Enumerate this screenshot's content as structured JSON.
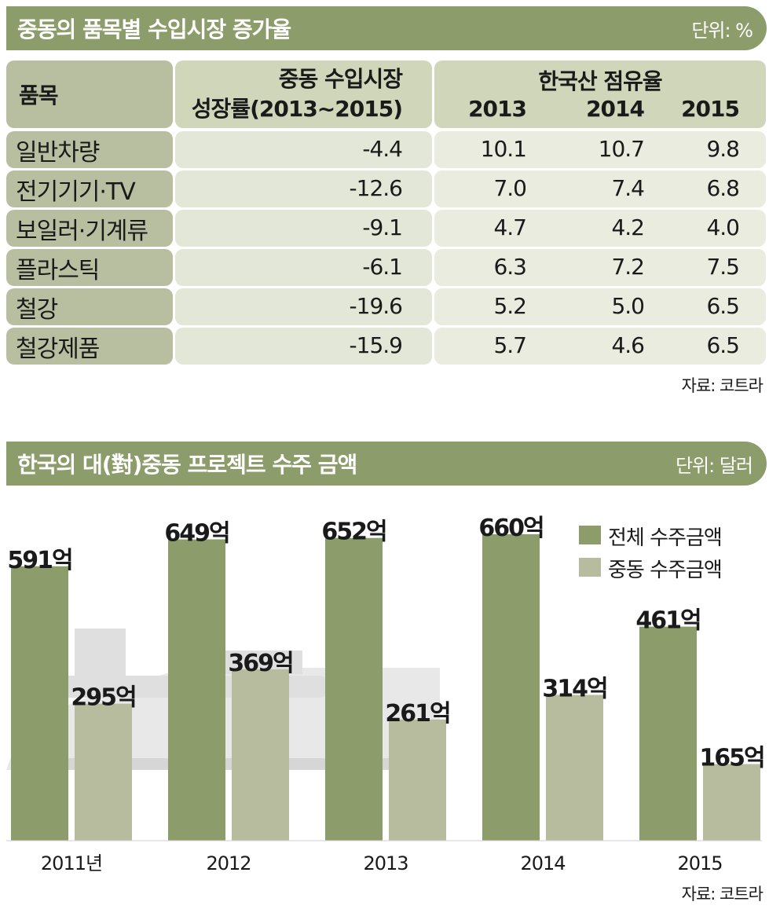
{
  "table_section": {
    "title": "중동의 품목별 수입시장 증가율",
    "unit": "단위: %",
    "headers": {
      "item": "품목",
      "growth_line1": "중동 수입시장",
      "growth_line2": "성장률(2013~2015)",
      "share_title": "한국산 점유율",
      "years": [
        "2013",
        "2014",
        "2015"
      ]
    },
    "rows": [
      {
        "item": "일반차량",
        "growth": "-4.4",
        "shares": [
          "10.1",
          "10.7",
          "9.8"
        ]
      },
      {
        "item": "전기기기·TV",
        "growth": "-12.6",
        "shares": [
          "7.0",
          "7.4",
          "6.8"
        ]
      },
      {
        "item": "보일러·기계류",
        "growth": "-9.1",
        "shares": [
          "4.7",
          "4.2",
          "4.0"
        ]
      },
      {
        "item": "플라스틱",
        "growth": "-6.1",
        "shares": [
          "6.3",
          "7.2",
          "7.5"
        ]
      },
      {
        "item": "철강",
        "growth": "-19.6",
        "shares": [
          "5.2",
          "5.0",
          "6.5"
        ]
      },
      {
        "item": "철강제품",
        "growth": "-15.9",
        "shares": [
          "5.7",
          "4.6",
          "6.5"
        ]
      }
    ],
    "source": "자료: 코트라"
  },
  "chart_section": {
    "title": "한국의 대(對)중동 프로젝트 수주 금액",
    "unit": "단위: 달러",
    "source": "자료: 코트라"
  },
  "chart_data": {
    "type": "bar",
    "categories": [
      "2011년",
      "2012",
      "2013",
      "2014",
      "2015"
    ],
    "series": [
      {
        "name": "전체 수주금액",
        "values": [
          591,
          649,
          652,
          660,
          461
        ],
        "labels": [
          "591억",
          "649억",
          "652억",
          "660억",
          "461억"
        ],
        "color": "#8c9c6a"
      },
      {
        "name": "중동 수주금액",
        "values": [
          295,
          369,
          261,
          314,
          165
        ],
        "labels": [
          "295억",
          "369억",
          "261억",
          "314억",
          "165억"
        ],
        "color": "#b8bc9f"
      }
    ],
    "legend_position": "top-right",
    "grid": false
  }
}
